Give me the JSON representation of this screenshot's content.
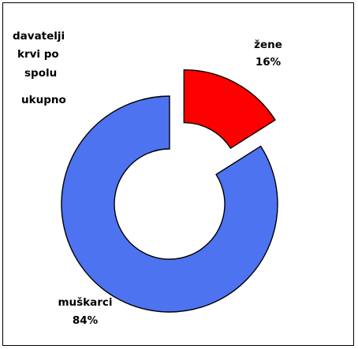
{
  "chart_data": {
    "type": "pie",
    "variant": "doughnut",
    "title_lines": [
      "davatelji",
      "krvi po",
      "spolu"
    ],
    "subtitle": "ukupno",
    "slices": [
      {
        "label": "žene",
        "value": 16,
        "value_text": "16%",
        "color": "#ff0000",
        "exploded": true
      },
      {
        "label": "muškarci",
        "value": 84,
        "value_text": "84%",
        "color": "#4d73f0",
        "exploded": false
      }
    ],
    "legend": "none",
    "grid": false
  }
}
